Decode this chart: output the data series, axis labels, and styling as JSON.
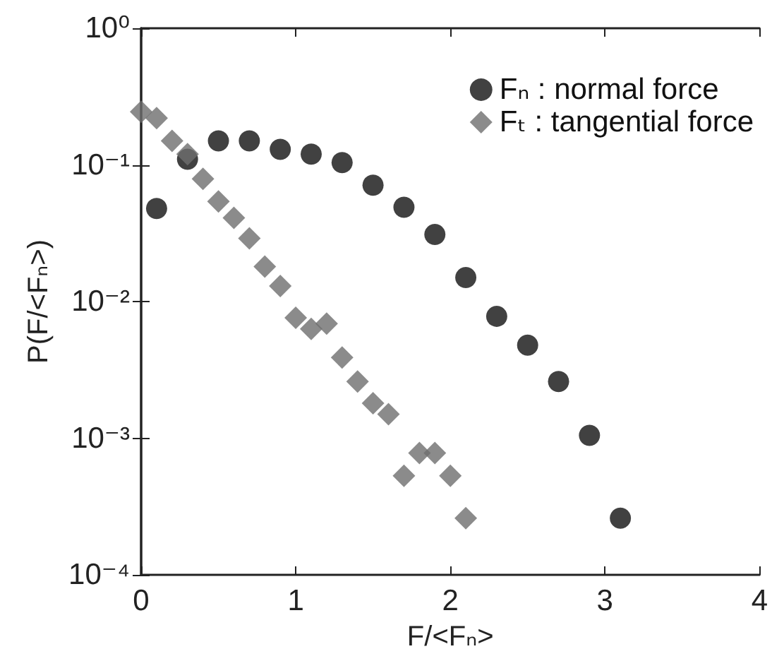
{
  "chart_data": {
    "type": "scatter",
    "xlabel": "F/<Fₙ>",
    "ylabel": "P(F/<Fₙ>)",
    "log": "y",
    "xlim": [
      0,
      4
    ],
    "xticks": [
      0,
      1,
      2,
      3,
      4
    ],
    "ylim": [
      0.0001,
      1
    ],
    "yticks": [
      {
        "value": 0.0001,
        "label": "10⁻⁴"
      },
      {
        "value": 0.001,
        "label": "10⁻³"
      },
      {
        "value": 0.01,
        "label": "10⁻²"
      },
      {
        "value": 0.1,
        "label": "10⁻¹"
      },
      {
        "value": 1,
        "label": "10⁰"
      }
    ],
    "grid": false,
    "legend": "top right",
    "series": [
      {
        "name": "Fₙ : normal force",
        "color": "#111111",
        "marker": "circle",
        "x": [
          0.1,
          0.3,
          0.5,
          0.7,
          0.9,
          1.1,
          1.3,
          1.5,
          1.7,
          1.9,
          2.1,
          2.3,
          2.5,
          2.7,
          2.9,
          3.1
        ],
        "values": [
          0.048,
          0.11,
          0.15,
          0.15,
          0.13,
          0.12,
          0.104,
          0.071,
          0.049,
          0.031,
          0.015,
          0.0078,
          0.0048,
          0.0026,
          0.00105,
          0.00026
        ]
      },
      {
        "name": "Fₜ : tangential force",
        "color": "#6e6e6e",
        "marker": "diamond",
        "x": [
          0.0,
          0.1,
          0.2,
          0.3,
          0.4,
          0.5,
          0.6,
          0.7,
          0.8,
          0.9,
          1.0,
          1.1,
          1.2,
          1.3,
          1.4,
          1.5,
          1.6,
          1.7,
          1.8,
          1.9,
          2.0,
          2.1
        ],
        "values": [
          0.245,
          0.22,
          0.15,
          0.12,
          0.079,
          0.054,
          0.041,
          0.029,
          0.018,
          0.013,
          0.0076,
          0.0063,
          0.0069,
          0.0039,
          0.0026,
          0.0018,
          0.0015,
          0.00053,
          0.00078,
          0.00078,
          0.00053,
          0.00026
        ]
      }
    ]
  }
}
